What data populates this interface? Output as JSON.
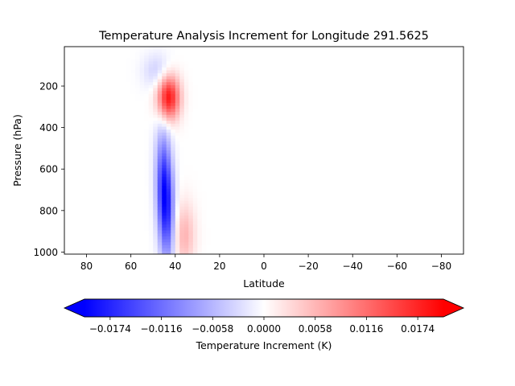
{
  "chart_data": {
    "type": "heatmap",
    "title": "Temperature Analysis Increment for Longitude 291.5625",
    "xlabel": "Latitude",
    "ylabel": "Pressure (hPa)",
    "xlim": [
      90,
      -90
    ],
    "ylim": [
      1010,
      10
    ],
    "x_ticks": [
      80,
      60,
      40,
      20,
      0,
      -20,
      -40,
      -60,
      -80
    ],
    "x_tick_labels": [
      "80",
      "60",
      "40",
      "20",
      "0",
      "−20",
      "−40",
      "−60",
      "−80"
    ],
    "y_ticks": [
      200,
      400,
      600,
      800,
      1000
    ],
    "y_tick_labels": [
      "200",
      "400",
      "600",
      "800",
      "1000"
    ],
    "colormap": "bwr",
    "color_low": "#0000ff",
    "color_mid": "#ffffff",
    "color_high": "#ff0000",
    "vmin": -0.0203,
    "vmax": 0.0203,
    "features": [
      {
        "kind": "cool",
        "lat": 44.5,
        "lat_spread": 2.6,
        "lat_tilt": -0.003,
        "p": 740,
        "p_spread": 200,
        "amplitude": -0.021
      },
      {
        "kind": "cool",
        "lat": 48,
        "lat_spread": 4.5,
        "lat_tilt": 0,
        "p": 130,
        "p_spread": 60,
        "amplitude": -0.004
      },
      {
        "kind": "warm",
        "lat": 43,
        "lat_spread": 3.5,
        "lat_tilt": 0,
        "p": 255,
        "p_spread": 75,
        "amplitude": 0.019
      },
      {
        "kind": "warm",
        "lat": 36,
        "lat_spread": 3.5,
        "lat_tilt": 0,
        "p": 920,
        "p_spread": 110,
        "amplitude": 0.006
      }
    ],
    "colorbar": {
      "label": "Temperature Increment (K)",
      "ticks": [
        -0.0174,
        -0.0116,
        -0.0058,
        0.0,
        0.0058,
        0.0116,
        0.0174
      ],
      "tick_labels": [
        "−0.0174",
        "−0.0116",
        "−0.0058",
        "0.0000",
        "0.0058",
        "0.0116",
        "0.0174"
      ],
      "extend": "both"
    }
  }
}
